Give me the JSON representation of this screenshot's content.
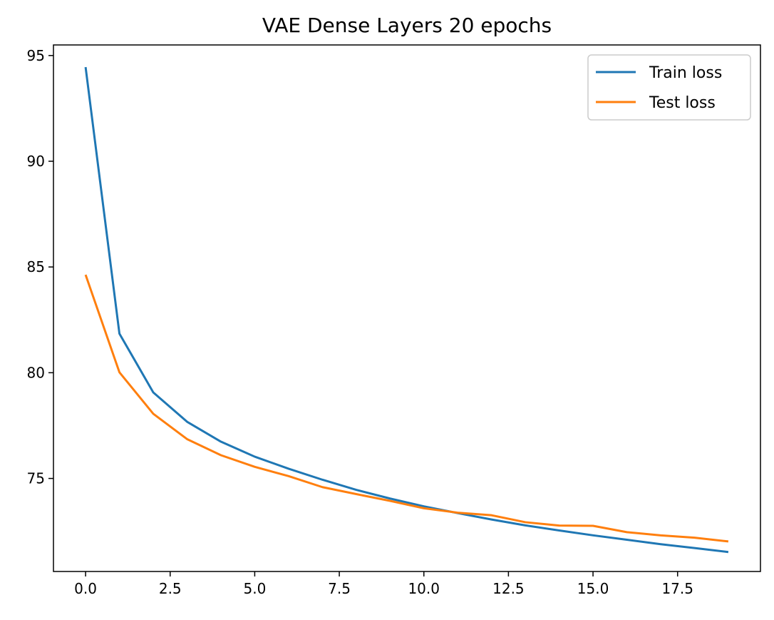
{
  "chart_data": {
    "type": "line",
    "title": "VAE Dense Layers 20 epochs",
    "xlabel": "",
    "ylabel": "",
    "xlim": [
      -0.95,
      19.95
    ],
    "ylim": [
      70.6,
      95.5
    ],
    "xticks": [
      0.0,
      2.5,
      5.0,
      7.5,
      10.0,
      12.5,
      15.0,
      17.5
    ],
    "xtick_labels": [
      "0.0",
      "2.5",
      "5.0",
      "7.5",
      "10.0",
      "12.5",
      "15.0",
      "17.5"
    ],
    "yticks": [
      75,
      80,
      85,
      90,
      95
    ],
    "ytick_labels": [
      "75",
      "80",
      "85",
      "90",
      "95"
    ],
    "grid": false,
    "legend_position": "top-right",
    "x": [
      0,
      1,
      2,
      3,
      4,
      5,
      6,
      7,
      8,
      9,
      10,
      11,
      12,
      13,
      14,
      15,
      16,
      17,
      18,
      19
    ],
    "series": [
      {
        "name": "Train loss",
        "color": "#1f77b4",
        "values": [
          94.45,
          81.85,
          79.07,
          77.68,
          76.74,
          76.03,
          75.46,
          74.94,
          74.46,
          74.05,
          73.68,
          73.36,
          73.06,
          72.78,
          72.54,
          72.31,
          72.1,
          71.89,
          71.71,
          71.52
        ]
      },
      {
        "name": "Test loss",
        "color": "#ff7f0e",
        "values": [
          84.63,
          80.02,
          78.06,
          76.86,
          76.1,
          75.55,
          75.11,
          74.59,
          74.26,
          73.94,
          73.59,
          73.38,
          73.26,
          72.93,
          72.77,
          72.76,
          72.46,
          72.31,
          72.2,
          72.02
        ]
      }
    ]
  }
}
